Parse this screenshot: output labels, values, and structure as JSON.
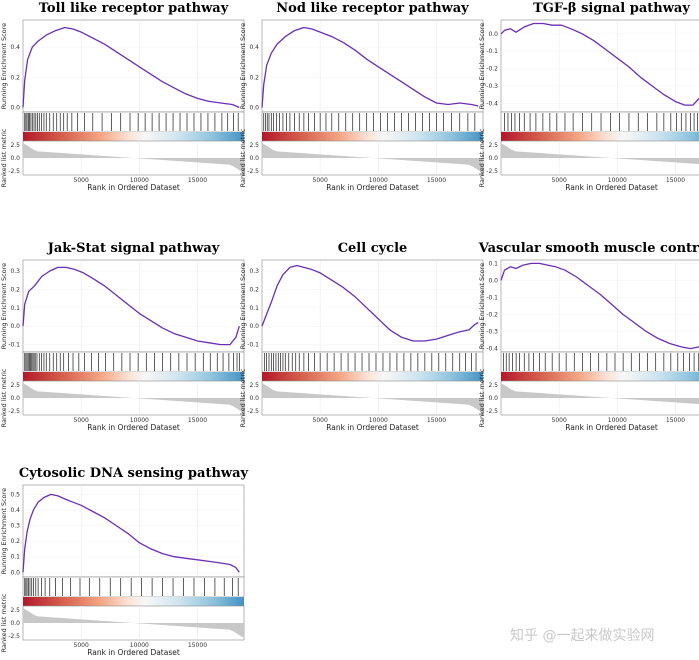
{
  "watermark": {
    "text": "知乎 @一起来做实验网"
  },
  "chart_data": [
    {
      "type": "line",
      "title": "Toll like receptor pathway",
      "ylabel": "Running Enrichment Score",
      "ylabel2": "Ranked list metric",
      "xlabel": "Rank in Ordered Dataset",
      "xlim": [
        0,
        19000
      ],
      "xticks": [
        5000,
        10000,
        15000
      ],
      "ylim": [
        -0.03,
        0.58
      ],
      "yticks": [
        0.0,
        0.2,
        0.4
      ],
      "ytick_labels": [
        "0.0",
        "0.2",
        "0.4"
      ],
      "metric_ticks": [
        "2.5",
        "0.0",
        "-2.5"
      ],
      "series": [
        {
          "x": [
            0,
            150,
            400,
            800,
            1300,
            2000,
            2800,
            3600,
            4300,
            5000,
            6000,
            7000,
            8000,
            9000,
            10000,
            11000,
            12000,
            13000,
            14000,
            15000,
            16000,
            17000,
            18000,
            18600
          ],
          "values": [
            0.0,
            0.18,
            0.32,
            0.4,
            0.44,
            0.48,
            0.51,
            0.53,
            0.52,
            0.5,
            0.46,
            0.42,
            0.37,
            0.32,
            0.27,
            0.22,
            0.17,
            0.13,
            0.09,
            0.06,
            0.04,
            0.03,
            0.02,
            0.0
          ]
        }
      ],
      "hits": [
        150,
        250,
        350,
        470,
        560,
        680,
        800,
        950,
        1100,
        1250,
        1400,
        1600,
        1800,
        2000,
        2300,
        2600,
        2900,
        3200,
        3500,
        3800,
        4200,
        4700,
        5300,
        6000,
        6800,
        7600,
        8400,
        9200,
        9900,
        10500,
        11100,
        11700,
        12300,
        12900,
        13500,
        14100,
        14700,
        15300,
        15900,
        16500,
        17100,
        17600,
        18100,
        18500
      ]
    },
    {
      "type": "line",
      "title": "Nod like receptor pathway",
      "ylabel": "Running Enrichment Score",
      "ylabel2": "Ranked list metric",
      "xlabel": "Rank in Ordered Dataset",
      "xlim": [
        0,
        19000
      ],
      "xticks": [
        5000,
        10000,
        15000
      ],
      "ylim": [
        -0.03,
        0.58
      ],
      "yticks": [
        0.0,
        0.2,
        0.4
      ],
      "ytick_labels": [
        "0.0",
        "0.2",
        "0.4"
      ],
      "metric_ticks": [
        "2.5",
        "0.0",
        "-2.5"
      ],
      "series": [
        {
          "x": [
            0,
            150,
            400,
            800,
            1300,
            2000,
            2800,
            3600,
            4300,
            5000,
            6000,
            7000,
            8000,
            9000,
            10000,
            11000,
            12000,
            13000,
            14000,
            15000,
            16000,
            17000,
            18000,
            18600
          ],
          "values": [
            0.0,
            0.15,
            0.28,
            0.36,
            0.42,
            0.47,
            0.51,
            0.53,
            0.52,
            0.5,
            0.47,
            0.43,
            0.38,
            0.32,
            0.27,
            0.22,
            0.17,
            0.12,
            0.07,
            0.03,
            0.02,
            0.03,
            0.02,
            0.01
          ]
        }
      ],
      "hits": [
        150,
        300,
        450,
        600,
        800,
        1000,
        1250,
        1500,
        1800,
        2100,
        2400,
        2800,
        3200,
        3600,
        4000,
        4500,
        5000,
        5500,
        6000,
        6600,
        7200,
        7800,
        8400,
        9000,
        9600,
        10200,
        10800,
        11400,
        12000,
        12600,
        13200,
        13800,
        14400,
        15000,
        15600,
        16300,
        17000,
        17700,
        18300
      ]
    },
    {
      "type": "line",
      "title": "TGF-β signal pathway",
      "ylabel": "Running Enrichment Score",
      "ylabel2": "Ranked list metric",
      "xlabel": "Rank in Ordered Dataset",
      "xlim": [
        0,
        19000
      ],
      "xticks": [
        5000,
        10000,
        15000
      ],
      "ylim": [
        -0.45,
        0.08
      ],
      "yticks": [
        0.0,
        -0.1,
        -0.2,
        -0.3,
        -0.4
      ],
      "ytick_labels": [
        "0.0",
        "-0.1",
        "-0.2",
        "-0.3",
        "-0.4"
      ],
      "metric_ticks": [
        "2.5",
        "0.0",
        "-2.5"
      ],
      "series": [
        {
          "x": [
            0,
            300,
            800,
            1300,
            2000,
            2800,
            3600,
            4400,
            5200,
            6000,
            7000,
            8000,
            9000,
            10000,
            11000,
            12000,
            13000,
            14000,
            15000,
            15800,
            16500,
            17200,
            17800,
            18300,
            18600
          ],
          "values": [
            0.0,
            0.02,
            0.03,
            0.01,
            0.04,
            0.06,
            0.06,
            0.05,
            0.05,
            0.03,
            0.0,
            -0.04,
            -0.09,
            -0.14,
            -0.19,
            -0.25,
            -0.3,
            -0.35,
            -0.39,
            -0.41,
            -0.41,
            -0.36,
            -0.25,
            -0.12,
            -0.02
          ]
        }
      ],
      "hits": [
        300,
        600,
        900,
        1200,
        1600,
        2000,
        2500,
        3000,
        3600,
        4200,
        4800,
        5500,
        6200,
        7000,
        7800,
        8600,
        9400,
        10200,
        11000,
        11800,
        12600,
        13400,
        14000,
        14600,
        15100,
        15500,
        15900,
        16300,
        16600,
        16900,
        17200,
        17400,
        17600,
        17800,
        18000,
        18200,
        18400,
        18500
      ]
    },
    {
      "type": "line",
      "title": "Jak-Stat signal pathway",
      "ylabel": "Running Enrichment Score",
      "ylabel2": "Ranked list metric",
      "xlabel": "Rank in Ordered Dataset",
      "xlim": [
        0,
        19000
      ],
      "xticks": [
        5000,
        10000,
        15000
      ],
      "ylim": [
        -0.14,
        0.36
      ],
      "yticks": [
        0.3,
        0.2,
        0.1,
        0.0,
        -0.1
      ],
      "ytick_labels": [
        "0.3",
        "0.2",
        "0.1",
        "0.0",
        "-0.1"
      ],
      "metric_ticks": [
        "2.5",
        "0.0",
        "-2.5"
      ],
      "series": [
        {
          "x": [
            0,
            150,
            500,
            1000,
            1600,
            2300,
            3000,
            3700,
            4400,
            5200,
            6000,
            7000,
            8000,
            9000,
            10000,
            11000,
            12000,
            13000,
            14000,
            15000,
            16000,
            17000,
            17800,
            18300,
            18600
          ],
          "values": [
            0.0,
            0.12,
            0.19,
            0.22,
            0.27,
            0.3,
            0.32,
            0.32,
            0.31,
            0.29,
            0.26,
            0.22,
            0.17,
            0.12,
            0.07,
            0.03,
            -0.01,
            -0.04,
            -0.06,
            -0.08,
            -0.09,
            -0.1,
            -0.1,
            -0.06,
            0.0
          ]
        }
      ],
      "hits": [
        150,
        250,
        350,
        450,
        550,
        650,
        750,
        850,
        950,
        1050,
        1200,
        1400,
        1600,
        1800,
        2000,
        2300,
        2600,
        2900,
        3200,
        3500,
        3900,
        4300,
        4800,
        5300,
        5900,
        6500,
        7100,
        7800,
        8500,
        9200,
        9900,
        10600,
        11300,
        12000,
        12700,
        13400,
        14100,
        14800,
        15500,
        16100,
        16700,
        17200,
        17700,
        18100,
        18400,
        18600
      ]
    },
    {
      "type": "line",
      "title": "Cell cycle",
      "ylabel": "Running Enrichment Score",
      "ylabel2": "Ranked list metric",
      "xlabel": "Rank in Ordered Dataset",
      "xlim": [
        0,
        19000
      ],
      "xticks": [
        5000,
        10000,
        15000
      ],
      "ylim": [
        -0.14,
        0.36
      ],
      "yticks": [
        0.3,
        0.2,
        0.1,
        0.0,
        -0.1
      ],
      "ytick_labels": [
        "0.3",
        "0.2",
        "0.1",
        "0.0",
        "-0.1"
      ],
      "metric_ticks": [
        "2.5",
        "0.0",
        "-2.5"
      ],
      "series": [
        {
          "x": [
            0,
            300,
            800,
            1300,
            1800,
            2400,
            3000,
            3600,
            4200,
            5000,
            6000,
            7000,
            8000,
            9000,
            10000,
            11000,
            12000,
            13000,
            14000,
            15000,
            16000,
            17000,
            17800,
            18300,
            18600
          ],
          "values": [
            0.0,
            0.05,
            0.13,
            0.22,
            0.28,
            0.32,
            0.33,
            0.32,
            0.31,
            0.29,
            0.25,
            0.21,
            0.16,
            0.1,
            0.04,
            -0.02,
            -0.06,
            -0.08,
            -0.08,
            -0.07,
            -0.05,
            -0.03,
            -0.02,
            0.01,
            0.02
          ]
        }
      ],
      "hits": [
        200,
        400,
        600,
        800,
        1000,
        1200,
        1400,
        1600,
        1800,
        2000,
        2300,
        2600,
        2900,
        3200,
        3600,
        4000,
        4500,
        5000,
        5600,
        6200,
        6800,
        7400,
        8000,
        8600,
        9200,
        9800,
        10400,
        11000,
        11600,
        12200,
        12800,
        13400,
        14000,
        14600,
        15200,
        15800,
        16400,
        17000,
        17500,
        18000,
        18400
      ]
    },
    {
      "type": "line",
      "title": "Vascular smooth muscle contraction",
      "ylabel": "Running Enrichment Score",
      "ylabel2": "Ranked list metric",
      "xlabel": "Rank in Ordered Dataset",
      "xlim": [
        0,
        19000
      ],
      "xticks": [
        5000,
        10000,
        15000
      ],
      "ylim": [
        -0.42,
        0.12
      ],
      "yticks": [
        0.1,
        0.0,
        -0.1,
        -0.2,
        -0.3,
        -0.4
      ],
      "ytick_labels": [
        "0.1",
        "0.0",
        "-0.1",
        "-0.2",
        "-0.3",
        "-0.4"
      ],
      "metric_ticks": [
        "2.5",
        "0.0",
        "-2.5"
      ],
      "series": [
        {
          "x": [
            0,
            300,
            800,
            1300,
            1900,
            2600,
            3300,
            4000,
            4700,
            5500,
            6500,
            7500,
            8500,
            9500,
            10500,
            11500,
            12500,
            13500,
            14500,
            15500,
            16300,
            17000,
            17600,
            18100,
            18500,
            18700
          ],
          "values": [
            0.0,
            0.06,
            0.08,
            0.07,
            0.09,
            0.1,
            0.1,
            0.09,
            0.08,
            0.06,
            0.02,
            -0.03,
            -0.08,
            -0.14,
            -0.2,
            -0.25,
            -0.3,
            -0.34,
            -0.37,
            -0.39,
            -0.4,
            -0.39,
            -0.37,
            -0.3,
            -0.15,
            0.02
          ]
        }
      ],
      "hits": [
        200,
        450,
        700,
        1000,
        1300,
        1600,
        2000,
        2400,
        2800,
        3300,
        3800,
        4400,
        5000,
        5600,
        6300,
        7000,
        7700,
        8400,
        9100,
        9800,
        10500,
        11200,
        11900,
        12600,
        13300,
        14000,
        14600,
        15200,
        15700,
        16200,
        16600,
        17000,
        17400,
        17700,
        18000,
        18200,
        18400,
        18550,
        18650
      ]
    },
    {
      "type": "line",
      "title": "Cytosolic DNA sensing pathway",
      "ylabel": "Running Enrichment Score",
      "ylabel2": "Ranked list metric",
      "xlabel": "Rank in Ordered Dataset",
      "xlim": [
        0,
        19000
      ],
      "xticks": [
        5000,
        10000,
        15000
      ],
      "ylim": [
        -0.03,
        0.56
      ],
      "yticks": [
        0.5,
        0.4,
        0.3,
        0.2,
        0.1,
        0.0
      ],
      "ytick_labels": [
        "0.5",
        "0.4",
        "0.3",
        "0.2",
        "0.1",
        "0.0"
      ],
      "metric_ticks": [
        "2.5",
        "0.0",
        "-2.5"
      ],
      "series": [
        {
          "x": [
            0,
            150,
            350,
            600,
            900,
            1300,
            1800,
            2400,
            3000,
            3600,
            4300,
            5000,
            6000,
            7000,
            8000,
            9000,
            10000,
            11000,
            12000,
            13000,
            14000,
            15000,
            16000,
            17000,
            17800,
            18300,
            18600
          ],
          "values": [
            0.0,
            0.15,
            0.26,
            0.34,
            0.4,
            0.45,
            0.48,
            0.5,
            0.49,
            0.47,
            0.45,
            0.43,
            0.39,
            0.35,
            0.3,
            0.25,
            0.19,
            0.15,
            0.12,
            0.1,
            0.09,
            0.08,
            0.07,
            0.06,
            0.05,
            0.03,
            0.0
          ]
        }
      ],
      "hits": [
        150,
        250,
        350,
        480,
        600,
        750,
        900,
        1100,
        1300,
        1600,
        1900,
        2300,
        2800,
        3400,
        4100,
        4900,
        5700,
        6600,
        7500,
        8400,
        9300,
        10200,
        11100,
        12000,
        12900,
        13800,
        14700,
        15600,
        16500,
        17300,
        18000,
        18500
      ]
    }
  ]
}
